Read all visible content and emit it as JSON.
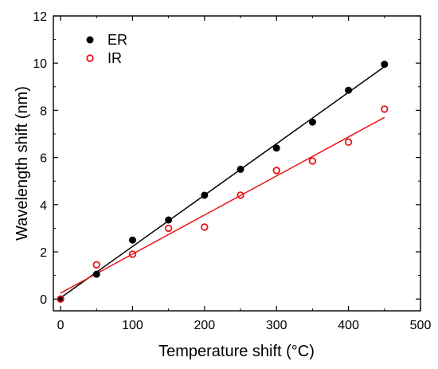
{
  "chart_data": {
    "type": "scatter",
    "xlabel": "Temperature shift (°C)",
    "ylabel": "Wavelength shift (nm)",
    "xlim": [
      -10,
      500
    ],
    "ylim": [
      -0.5,
      12
    ],
    "xticks": [
      0,
      100,
      200,
      300,
      400,
      500
    ],
    "yticks": [
      0,
      2,
      4,
      6,
      8,
      10,
      12
    ],
    "legend_position": "top-left",
    "grid": false,
    "series": [
      {
        "name": "ER",
        "marker": "filled-circle",
        "color": "#000000",
        "x": [
          0,
          50,
          100,
          150,
          200,
          250,
          300,
          350,
          400,
          450
        ],
        "y": [
          0.0,
          1.05,
          2.5,
          3.35,
          4.4,
          5.5,
          6.4,
          7.5,
          8.85,
          9.95
        ],
        "fit": {
          "x": [
            0,
            450
          ],
          "y": [
            0.05,
            9.85
          ]
        }
      },
      {
        "name": "IR",
        "marker": "open-circle",
        "color": "#e8141a",
        "x": [
          0,
          50,
          100,
          150,
          200,
          250,
          300,
          350,
          400,
          450
        ],
        "y": [
          0.0,
          1.45,
          1.9,
          3.0,
          3.05,
          4.4,
          5.45,
          5.85,
          6.65,
          8.05
        ],
        "fit": {
          "x": [
            0,
            450
          ],
          "y": [
            0.25,
            7.7
          ]
        }
      }
    ]
  }
}
